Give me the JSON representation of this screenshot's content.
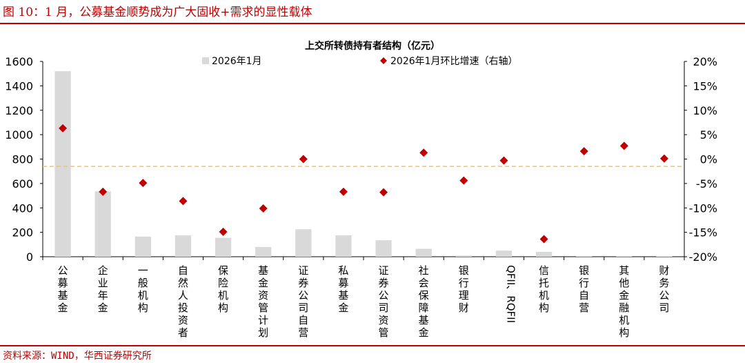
{
  "figure_title": "图 10：1 月，公募基金顺势成为广大固收+需求的显性载体",
  "source": "资料来源：WIND，华西证券研究所",
  "chart_data": {
    "type": "bar",
    "title": "上交所转债持有者结构（亿元）",
    "categories": [
      "公募基金",
      "企业年金",
      "一般机构",
      "自然人投资者",
      "保险机构",
      "基金资管计划",
      "证券公司自营",
      "私募基金",
      "证券公司资管",
      "社会保障基金",
      "银行理财",
      "QFII、RQFII",
      "信托机构",
      "银行自营",
      "其他金融机构",
      "财务公司"
    ],
    "series": [
      {
        "name": "2026年1月",
        "type": "bar",
        "axis": "left",
        "color": "#d9d9d9",
        "values": [
          1520,
          535,
          165,
          175,
          155,
          80,
          225,
          175,
          135,
          65,
          10,
          50,
          40,
          5,
          5,
          3
        ]
      },
      {
        "name": "2026年1月环比增速（右轴）",
        "type": "scatter",
        "axis": "right",
        "color": "#c00000",
        "marker": "diamond",
        "values": [
          6.3,
          -6.7,
          -4.9,
          -8.6,
          -14.9,
          -10.1,
          0.0,
          -6.7,
          -6.8,
          1.3,
          -4.4,
          -0.3,
          -16.4,
          1.6,
          2.7,
          0.1
        ]
      }
    ],
    "ylim": [
      0,
      1600
    ],
    "yticks": [
      "0",
      "200",
      "400",
      "600",
      "800",
      "1000",
      "1200",
      "1400",
      "1600"
    ],
    "y2lim": [
      -20,
      20
    ],
    "y2ticks": [
      "-20%",
      "-15%",
      "-10%",
      "-5%",
      "0%",
      "5%",
      "10%",
      "15%",
      "20%"
    ],
    "reference_line": {
      "axis": "right",
      "value": -1.5,
      "color": "#f5c26b",
      "style": "dashed"
    },
    "grid": false,
    "legend": "top"
  }
}
